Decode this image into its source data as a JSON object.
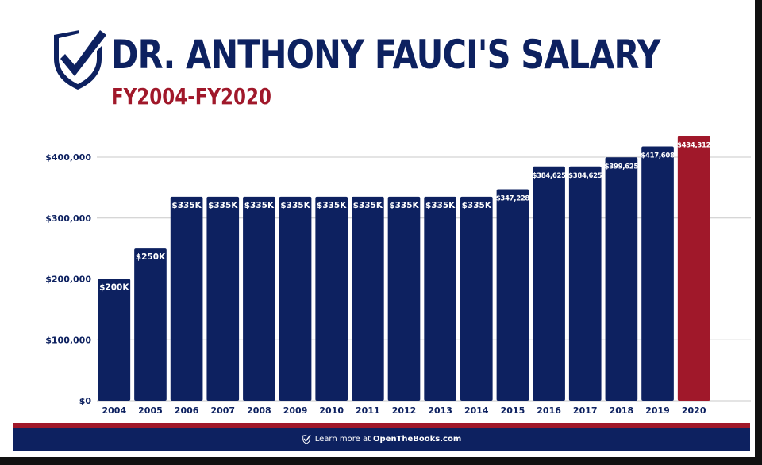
{
  "header": {
    "title": "DR. ANTHONY FAUCI'S SALARY",
    "subtitle": "FY2004-FY2020"
  },
  "footer": {
    "prefix": "Learn more at",
    "site": "OpenTheBooks.com"
  },
  "colors": {
    "navy": "#0d2160",
    "red": "#a0182a",
    "highlight_bar": "#a0182a",
    "bar": "#0d2160"
  },
  "icons": {
    "logo": "shield-check-icon",
    "footer": "shield-check-icon"
  },
  "chart_data": {
    "type": "bar",
    "title": "DR. ANTHONY FAUCI'S SALARY",
    "subtitle": "FY2004-FY2020",
    "categories": [
      "2004",
      "2005",
      "2006",
      "2007",
      "2008",
      "2009",
      "2010",
      "2011",
      "2012",
      "2013",
      "2014",
      "2015",
      "2016",
      "2017",
      "2018",
      "2019",
      "2020"
    ],
    "values": [
      200000,
      250000,
      335000,
      335000,
      335000,
      335000,
      335000,
      335000,
      335000,
      335000,
      335000,
      347228,
      384625,
      384625,
      399625,
      417608,
      434312
    ],
    "data_labels": [
      "$200K",
      "$250K",
      "$335K",
      "$335K",
      "$335K",
      "$335K",
      "$335K",
      "$335K",
      "$335K",
      "$335K",
      "$335K",
      "$347,228",
      "$384,625",
      "$384,625",
      "$399,625",
      "$417,608",
      "$434,312"
    ],
    "yticks": [
      0,
      100000,
      200000,
      300000,
      400000
    ],
    "ytick_labels": [
      "$0",
      "$100,000",
      "$200,000",
      "$300,000",
      "$400,000"
    ],
    "ylim": [
      0,
      400000
    ],
    "highlight_category": "2020",
    "grid": true,
    "legend": "none"
  }
}
